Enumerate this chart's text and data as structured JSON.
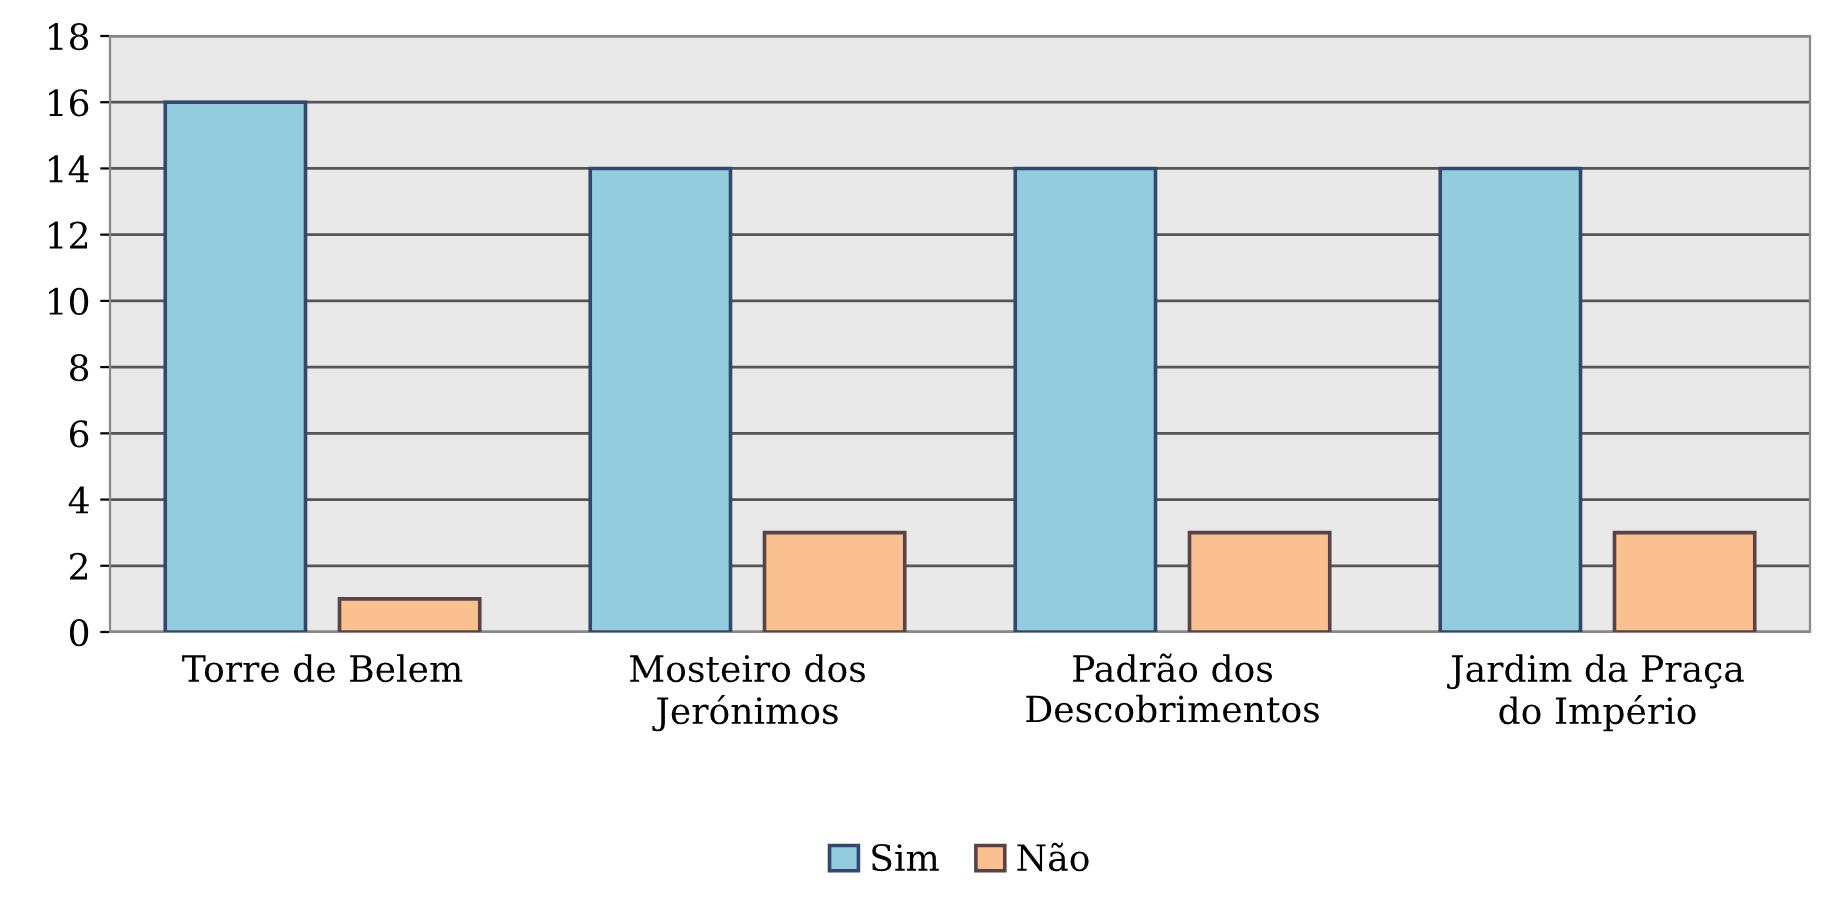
{
  "chart_data": {
    "type": "bar",
    "categories": [
      "Torre de Belem",
      "Mosteiro dos\nJerónimos",
      "Padrão dos\nDescobrimentos",
      "Jardim da Praça\ndo Império"
    ],
    "series": [
      {
        "name": "Sim",
        "color": "#93cddd",
        "values": [
          16,
          14,
          14,
          14
        ]
      },
      {
        "name": "Não",
        "color": "#fac08f",
        "values": [
          1,
          3,
          3,
          3
        ]
      }
    ],
    "ylim": [
      0,
      18
    ],
    "yticks": [
      0,
      2,
      4,
      6,
      8,
      10,
      12,
      14,
      16,
      18
    ],
    "grid": "y",
    "legend": "bottom"
  }
}
